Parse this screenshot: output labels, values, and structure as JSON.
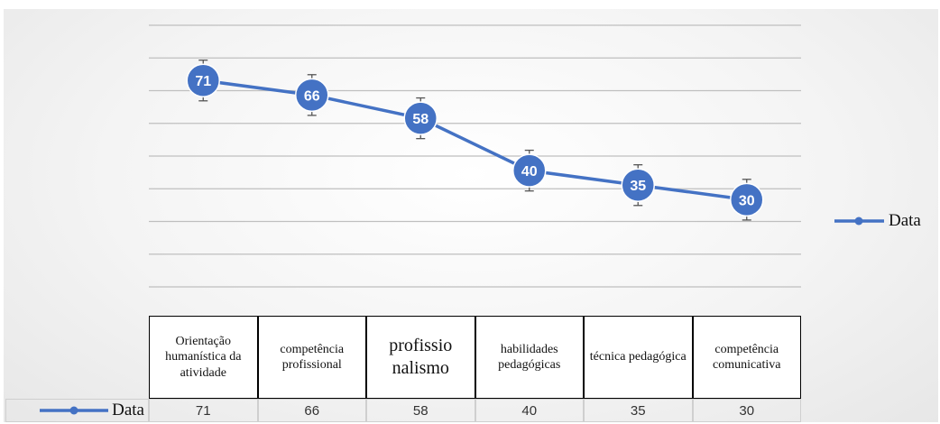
{
  "chart_data": {
    "type": "line",
    "categories": [
      "Orientação humanística da atividade",
      "competência profissional",
      "profissio nalismo",
      "habilidades pedagógicas",
      "técnica pedagógica",
      "competência comunicativa"
    ],
    "series": [
      {
        "name": "Data",
        "values": [
          71,
          66,
          58,
          40,
          35,
          30
        ]
      }
    ],
    "error_bar": 7,
    "ylim": [
      0,
      90
    ],
    "grid": true,
    "legend": "right",
    "data_table": true,
    "color": "#4472C4"
  }
}
